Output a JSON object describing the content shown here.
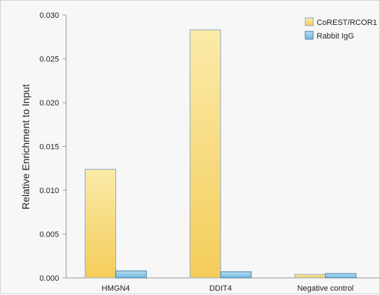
{
  "chart_data": {
    "type": "bar",
    "title": "",
    "xlabel": "",
    "ylabel": "Relative Enrichment to Input",
    "categories": [
      "HMGN4",
      "DDIT4",
      "Negative control"
    ],
    "series": [
      {
        "name": "CoREST/RCOR1",
        "values": [
          0.0124,
          0.0283,
          0.0004
        ],
        "color_top": "#fbeaa9",
        "color_bottom": "#f4cd5a",
        "stroke": "#8fa8c8"
      },
      {
        "name": "Rabbit IgG",
        "values": [
          0.0008,
          0.0007,
          0.0005
        ],
        "color_top": "#b7ddf2",
        "color_bottom": "#6fb6de",
        "stroke": "#4d7ea8"
      }
    ],
    "yticks": [
      "0.000",
      "0.005",
      "0.010",
      "0.015",
      "0.020",
      "0.025",
      "0.030"
    ],
    "ylim": [
      0,
      0.03
    ],
    "grid": false,
    "legend_position": "top-right"
  }
}
